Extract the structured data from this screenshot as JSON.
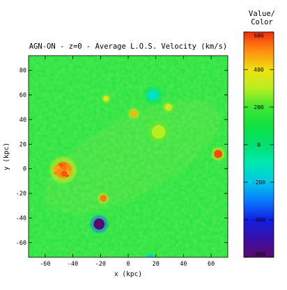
{
  "chart_data": {
    "type": "heatmap",
    "title": "AGN-ON - z=0 - Average L.O.S. Velocity (km/s)",
    "xlabel": "x (kpc)",
    "ylabel": "y (kpc)",
    "x_ticks": [
      -60,
      -40,
      -20,
      0,
      20,
      40,
      60
    ],
    "y_ticks": [
      -60,
      -40,
      -20,
      0,
      20,
      40,
      60,
      80
    ],
    "xlim": [
      -72,
      72
    ],
    "ylim": [
      -72,
      92
    ],
    "colorbar": {
      "title_line1": "Value/",
      "title_line2": "Color",
      "ticks": [
        600,
        400,
        200,
        0,
        -200,
        -400,
        -600
      ],
      "tick_labels": [
        "600",
        "400",
        "200",
        "0",
        "-200",
        "-400",
        "-600"
      ],
      "range": [
        -600,
        600
      ],
      "colormap_stops": [
        {
          "value": -600,
          "color": "#5a0a6e"
        },
        {
          "value": -500,
          "color": "#3a0fa8"
        },
        {
          "value": -400,
          "color": "#1020e0"
        },
        {
          "value": -300,
          "color": "#0a78ff"
        },
        {
          "value": -200,
          "color": "#00c8e8"
        },
        {
          "value": -100,
          "color": "#00e8b0"
        },
        {
          "value": 0,
          "color": "#00e070"
        },
        {
          "value": 100,
          "color": "#10e040"
        },
        {
          "value": 200,
          "color": "#40e830"
        },
        {
          "value": 300,
          "color": "#b8ee20"
        },
        {
          "value": 400,
          "color": "#f0e010"
        },
        {
          "value": 500,
          "color": "#ff8c10"
        },
        {
          "value": 600,
          "color": "#f03010"
        }
      ]
    },
    "background_value": 140,
    "features": [
      {
        "x": -47,
        "y": -1,
        "value": 500,
        "radius_kpc": 6
      },
      {
        "x": -21,
        "y": -45,
        "value": -600,
        "radius_kpc": 4
      },
      {
        "x": 65,
        "y": 12,
        "value": 570,
        "radius_kpc": 3
      },
      {
        "x": -18,
        "y": -24,
        "value": 520,
        "radius_kpc": 2.5
      },
      {
        "x": 4,
        "y": 45,
        "value": 450,
        "radius_kpc": 2.5
      },
      {
        "x": -16,
        "y": 57,
        "value": 380,
        "radius_kpc": 2
      },
      {
        "x": 29,
        "y": 50,
        "value": 350,
        "radius_kpc": 2.5
      },
      {
        "x": 22,
        "y": 30,
        "value": 300,
        "radius_kpc": 5
      },
      {
        "x": 18,
        "y": 60,
        "value": -120,
        "radius_kpc": 4
      },
      {
        "x": 16,
        "y": -72,
        "value": -200,
        "radius_kpc": 2
      }
    ]
  }
}
